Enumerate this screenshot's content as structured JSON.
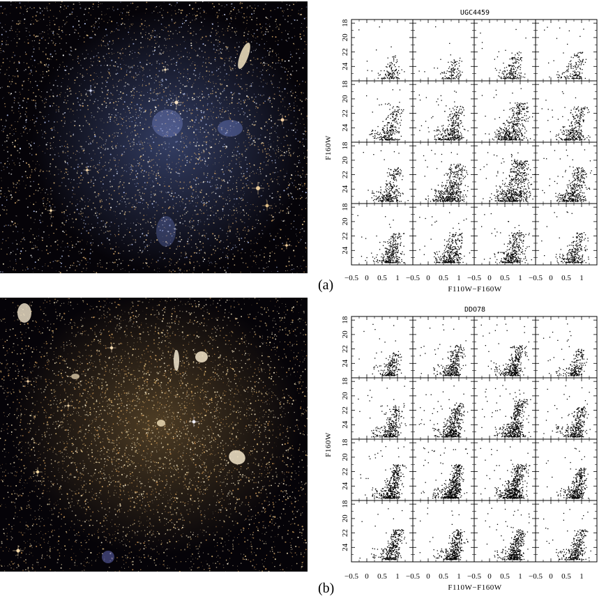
{
  "figure": {
    "panels": [
      {
        "letter": "(a)",
        "galaxy_name": "UGC4459",
        "image_description": "HST color composite of dwarf galaxy UGC4459 with blue star-forming regions",
        "cmd_grid": {
          "rows": 4,
          "cols": 4
        },
        "xlabel": "F110W−F160W",
        "ylabel": "F160W"
      },
      {
        "letter": "(b)",
        "galaxy_name": "DDO78",
        "image_description": "HST color composite of dwarf spheroidal galaxy DDO78, red/yellow resolved stars",
        "cmd_grid": {
          "rows": 4,
          "cols": 4
        },
        "xlabel": "F110W−F160W",
        "ylabel": "F160W"
      }
    ]
  },
  "chart_data": [
    {
      "type": "scatter",
      "title": "UGC4459",
      "layout": "4x4 small multiples of color-magnitude diagrams",
      "xlabel": "F110W−F160W",
      "ylabel": "F160W",
      "xlim": [
        -0.5,
        1.5
      ],
      "ylim": [
        26,
        17.5
      ],
      "y_inverted": true,
      "xticks": [
        "-0.5",
        "0",
        "0.5",
        "1"
      ],
      "yticks": [
        "18",
        "20",
        "22",
        "24"
      ],
      "point_color": "#000000",
      "cells": [
        {
          "n": 120,
          "rgb_color": 0.75,
          "rgb_top": 22.5,
          "spread": 0.12
        },
        {
          "n": 110,
          "rgb_color": 0.75,
          "rgb_top": 23.0,
          "spread": 0.12
        },
        {
          "n": 180,
          "rgb_color": 0.7,
          "rgb_top": 22.0,
          "spread": 0.14
        },
        {
          "n": 160,
          "rgb_color": 0.72,
          "rgb_top": 22.0,
          "spread": 0.14
        },
        {
          "n": 260,
          "rgb_color": 0.68,
          "rgb_top": 21.0,
          "spread": 0.14
        },
        {
          "n": 330,
          "rgb_color": 0.72,
          "rgb_top": 21.0,
          "spread": 0.16
        },
        {
          "n": 420,
          "rgb_color": 0.7,
          "rgb_top": 20.5,
          "spread": 0.2
        },
        {
          "n": 300,
          "rgb_color": 0.72,
          "rgb_top": 21.0,
          "spread": 0.17
        },
        {
          "n": 280,
          "rgb_color": 0.7,
          "rgb_top": 21.0,
          "spread": 0.15
        },
        {
          "n": 480,
          "rgb_color": 0.72,
          "rgb_top": 20.5,
          "spread": 0.2
        },
        {
          "n": 560,
          "rgb_color": 0.72,
          "rgb_top": 20.0,
          "spread": 0.22
        },
        {
          "n": 360,
          "rgb_color": 0.72,
          "rgb_top": 21.0,
          "spread": 0.17
        },
        {
          "n": 300,
          "rgb_color": 0.75,
          "rgb_top": 21.5,
          "spread": 0.15
        },
        {
          "n": 320,
          "rgb_color": 0.72,
          "rgb_top": 21.5,
          "spread": 0.16
        },
        {
          "n": 330,
          "rgb_color": 0.7,
          "rgb_top": 21.5,
          "spread": 0.16
        },
        {
          "n": 260,
          "rgb_color": 0.72,
          "rgb_top": 21.5,
          "spread": 0.15
        }
      ]
    },
    {
      "type": "scatter",
      "title": "DDO78",
      "layout": "4x4 small multiples of color-magnitude diagrams",
      "xlabel": "F110W−F160W",
      "ylabel": "F160W",
      "xlim": [
        -0.5,
        1.5
      ],
      "ylim": [
        26,
        17.5
      ],
      "y_inverted": true,
      "xticks": [
        "-0.5",
        "0",
        "0.5",
        "1"
      ],
      "yticks": [
        "18",
        "20",
        "22",
        "24"
      ],
      "point_color": "#000000",
      "cells": [
        {
          "n": 220,
          "rgb_color": 0.75,
          "rgb_top": 22.5,
          "spread": 0.1
        },
        {
          "n": 320,
          "rgb_color": 0.75,
          "rgb_top": 21.5,
          "spread": 0.11
        },
        {
          "n": 340,
          "rgb_color": 0.75,
          "rgb_top": 21.5,
          "spread": 0.11
        },
        {
          "n": 220,
          "rgb_color": 0.78,
          "rgb_top": 22.0,
          "spread": 0.1
        },
        {
          "n": 300,
          "rgb_color": 0.75,
          "rgb_top": 21.5,
          "spread": 0.11
        },
        {
          "n": 420,
          "rgb_color": 0.75,
          "rgb_top": 21.0,
          "spread": 0.12
        },
        {
          "n": 450,
          "rgb_color": 0.75,
          "rgb_top": 20.5,
          "spread": 0.12
        },
        {
          "n": 320,
          "rgb_color": 0.78,
          "rgb_top": 21.5,
          "spread": 0.11
        },
        {
          "n": 420,
          "rgb_color": 0.75,
          "rgb_top": 21.0,
          "spread": 0.12
        },
        {
          "n": 520,
          "rgb_color": 0.75,
          "rgb_top": 21.0,
          "spread": 0.12
        },
        {
          "n": 540,
          "rgb_color": 0.75,
          "rgb_top": 21.0,
          "spread": 0.13
        },
        {
          "n": 360,
          "rgb_color": 0.78,
          "rgb_top": 21.5,
          "spread": 0.11
        },
        {
          "n": 320,
          "rgb_color": 0.78,
          "rgb_top": 21.5,
          "spread": 0.11
        },
        {
          "n": 360,
          "rgb_color": 0.78,
          "rgb_top": 21.5,
          "spread": 0.11
        },
        {
          "n": 380,
          "rgb_color": 0.78,
          "rgb_top": 21.5,
          "spread": 0.11
        },
        {
          "n": 300,
          "rgb_color": 0.78,
          "rgb_top": 21.5,
          "spread": 0.11
        }
      ]
    }
  ]
}
